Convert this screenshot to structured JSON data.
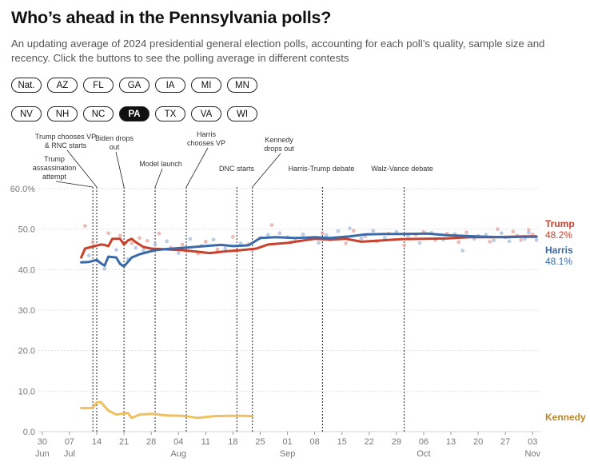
{
  "header": {
    "title": "Who’s ahead in the Pennsylvania polls?",
    "subtitle": "An updating average of 2024 presidential general election polls, accounting for each poll’s quality, sample size and recency. Click the buttons to see the polling average in different contests"
  },
  "contests": {
    "row1": [
      "Nat.",
      "AZ",
      "FL",
      "GA",
      "IA",
      "MI",
      "MN"
    ],
    "row2": [
      "NV",
      "NH",
      "NC",
      "PA",
      "TX",
      "VA",
      "WI"
    ],
    "active": "PA"
  },
  "chart_data": {
    "type": "line",
    "xlabel": "",
    "ylabel": "",
    "ylim": [
      0,
      60
    ],
    "y_ticks": [
      "0.0",
      "10.0",
      "20.0",
      "30.0",
      "40.0",
      "50.0",
      "60.0%"
    ],
    "x_ticks": [
      {
        "date": "2024-06-30",
        "day": "30",
        "month": "Jun"
      },
      {
        "date": "2024-07-07",
        "day": "07",
        "month": "Jul"
      },
      {
        "date": "2024-07-14",
        "day": "14",
        "month": ""
      },
      {
        "date": "2024-07-21",
        "day": "21",
        "month": ""
      },
      {
        "date": "2024-07-28",
        "day": "28",
        "month": ""
      },
      {
        "date": "2024-08-04",
        "day": "04",
        "month": "Aug"
      },
      {
        "date": "2024-08-11",
        "day": "11",
        "month": ""
      },
      {
        "date": "2024-08-18",
        "day": "18",
        "month": ""
      },
      {
        "date": "2024-08-25",
        "day": "25",
        "month": ""
      },
      {
        "date": "2024-09-01",
        "day": "01",
        "month": "Sep"
      },
      {
        "date": "2024-09-08",
        "day": "08",
        "month": ""
      },
      {
        "date": "2024-09-15",
        "day": "15",
        "month": ""
      },
      {
        "date": "2024-09-22",
        "day": "22",
        "month": ""
      },
      {
        "date": "2024-09-29",
        "day": "29",
        "month": ""
      },
      {
        "date": "2024-10-06",
        "day": "06",
        "month": "Oct"
      },
      {
        "date": "2024-10-13",
        "day": "13",
        "month": ""
      },
      {
        "date": "2024-10-20",
        "day": "20",
        "month": ""
      },
      {
        "date": "2024-10-27",
        "day": "27",
        "month": ""
      },
      {
        "date": "2024-11-03",
        "day": "03",
        "month": "Nov"
      }
    ],
    "xlim": [
      "2024-06-29",
      "2024-11-05"
    ],
    "grid": "horizontal dotted",
    "series": [
      {
        "name": "Trump",
        "color": "#c8412d",
        "label_value": "48.2%",
        "points": [
          [
            "2024-07-10",
            43.0
          ],
          [
            "2024-07-11",
            45.2
          ],
          [
            "2024-07-13",
            45.7
          ],
          [
            "2024-07-15",
            46.2
          ],
          [
            "2024-07-16",
            46.1
          ],
          [
            "2024-07-17",
            45.8
          ],
          [
            "2024-07-18",
            47.6
          ],
          [
            "2024-07-20",
            47.6
          ],
          [
            "2024-07-21",
            46.2
          ],
          [
            "2024-07-22",
            47.2
          ],
          [
            "2024-07-23",
            47.6
          ],
          [
            "2024-07-24",
            46.8
          ],
          [
            "2024-07-26",
            45.6
          ],
          [
            "2024-07-28",
            45.2
          ],
          [
            "2024-08-01",
            45.0
          ],
          [
            "2024-08-05",
            44.8
          ],
          [
            "2024-08-09",
            44.4
          ],
          [
            "2024-08-12",
            44.1
          ],
          [
            "2024-08-16",
            44.5
          ],
          [
            "2024-08-20",
            44.8
          ],
          [
            "2024-08-24",
            45.2
          ],
          [
            "2024-08-27",
            46.2
          ],
          [
            "2024-09-01",
            46.6
          ],
          [
            "2024-09-05",
            47.2
          ],
          [
            "2024-09-08",
            47.6
          ],
          [
            "2024-09-12",
            47.4
          ],
          [
            "2024-09-16",
            47.6
          ],
          [
            "2024-09-20",
            46.9
          ],
          [
            "2024-09-25",
            47.2
          ],
          [
            "2024-09-30",
            47.5
          ],
          [
            "2024-10-06",
            47.6
          ],
          [
            "2024-10-12",
            47.7
          ],
          [
            "2024-10-18",
            48.0
          ],
          [
            "2024-10-24",
            48.0
          ],
          [
            "2024-10-28",
            48.1
          ],
          [
            "2024-11-01",
            48.2
          ],
          [
            "2024-11-04",
            48.2
          ]
        ]
      },
      {
        "name": "Harris",
        "color": "#3a6aa8",
        "label_value": "48.1%",
        "points": [
          [
            "2024-07-10",
            41.8
          ],
          [
            "2024-07-12",
            41.9
          ],
          [
            "2024-07-14",
            42.4
          ],
          [
            "2024-07-15",
            41.6
          ],
          [
            "2024-07-16",
            41.0
          ],
          [
            "2024-07-17",
            43.2
          ],
          [
            "2024-07-19",
            43.0
          ],
          [
            "2024-07-20",
            41.4
          ],
          [
            "2024-07-21",
            40.8
          ],
          [
            "2024-07-23",
            43.0
          ],
          [
            "2024-07-25",
            43.8
          ],
          [
            "2024-07-27",
            44.3
          ],
          [
            "2024-07-29",
            44.8
          ],
          [
            "2024-08-01",
            45.1
          ],
          [
            "2024-08-04",
            45.3
          ],
          [
            "2024-08-08",
            45.6
          ],
          [
            "2024-08-12",
            45.9
          ],
          [
            "2024-08-15",
            46.1
          ],
          [
            "2024-08-18",
            45.8
          ],
          [
            "2024-08-22",
            46.0
          ],
          [
            "2024-08-25",
            47.8
          ],
          [
            "2024-08-29",
            48.0
          ],
          [
            "2024-09-03",
            47.8
          ],
          [
            "2024-09-08",
            48.0
          ],
          [
            "2024-09-12",
            47.8
          ],
          [
            "2024-09-17",
            48.2
          ],
          [
            "2024-09-21",
            48.7
          ],
          [
            "2024-09-26",
            48.8
          ],
          [
            "2024-10-01",
            48.8
          ],
          [
            "2024-10-07",
            48.9
          ],
          [
            "2024-10-12",
            48.5
          ],
          [
            "2024-10-17",
            48.3
          ],
          [
            "2024-10-22",
            48.1
          ],
          [
            "2024-10-27",
            48.0
          ],
          [
            "2024-10-31",
            48.1
          ],
          [
            "2024-11-04",
            48.1
          ]
        ]
      },
      {
        "name": "Kennedy",
        "color": "#f0c060",
        "label_value": "",
        "points": [
          [
            "2024-07-10",
            5.8
          ],
          [
            "2024-07-12",
            5.8
          ],
          [
            "2024-07-13",
            5.9
          ],
          [
            "2024-07-14",
            7.2
          ],
          [
            "2024-07-15",
            7.3
          ],
          [
            "2024-07-17",
            5.2
          ],
          [
            "2024-07-19",
            4.2
          ],
          [
            "2024-07-21",
            4.5
          ],
          [
            "2024-07-22",
            4.6
          ],
          [
            "2024-07-23",
            3.4
          ],
          [
            "2024-07-25",
            4.2
          ],
          [
            "2024-07-28",
            4.4
          ],
          [
            "2024-08-01",
            4.0
          ],
          [
            "2024-08-05",
            3.9
          ],
          [
            "2024-08-09",
            3.4
          ],
          [
            "2024-08-13",
            3.8
          ],
          [
            "2024-08-17",
            3.9
          ],
          [
            "2024-08-21",
            3.9
          ],
          [
            "2024-08-23",
            3.8
          ]
        ]
      }
    ],
    "annotations": [
      {
        "date": "2024-07-13",
        "lines": [
          "Trump",
          "assassination",
          "attempt"
        ]
      },
      {
        "date": "2024-07-14",
        "lines": [
          "Trump chooses VP",
          "& RNC starts"
        ]
      },
      {
        "date": "2024-07-21",
        "lines": [
          "Biden drops",
          "out"
        ]
      },
      {
        "date": "2024-07-29",
        "lines": [
          "Model launch"
        ]
      },
      {
        "date": "2024-08-06",
        "lines": [
          "Harris",
          "chooses VP"
        ]
      },
      {
        "date": "2024-08-19",
        "lines": [
          "DNC starts"
        ]
      },
      {
        "date": "2024-08-23",
        "lines": [
          "Kennedy",
          "drops out"
        ]
      },
      {
        "date": "2024-09-10",
        "lines": [
          "Harris-Trump debate"
        ]
      },
      {
        "date": "2024-10-01",
        "lines": [
          "Walz-Vance debate"
        ]
      }
    ],
    "polls": {
      "Trump": [
        [
          "2024-07-11",
          50.8
        ],
        [
          "2024-07-13",
          46.8
        ],
        [
          "2024-07-17",
          49.0
        ],
        [
          "2024-07-20",
          48.4
        ],
        [
          "2024-07-23",
          46.5
        ],
        [
          "2024-07-25",
          47.8
        ],
        [
          "2024-07-27",
          47.1
        ],
        [
          "2024-07-30",
          48.9
        ],
        [
          "2024-08-02",
          45.4
        ],
        [
          "2024-08-05",
          46.2
        ],
        [
          "2024-08-09",
          44.0
        ],
        [
          "2024-08-11",
          46.9
        ],
        [
          "2024-08-14",
          45.0
        ],
        [
          "2024-08-18",
          48.1
        ],
        [
          "2024-08-22",
          46.3
        ],
        [
          "2024-08-25",
          47.8
        ],
        [
          "2024-08-28",
          51.0
        ],
        [
          "2024-09-01",
          48.0
        ],
        [
          "2024-09-03",
          47.1
        ],
        [
          "2024-09-06",
          47.7
        ],
        [
          "2024-09-10",
          49.0
        ],
        [
          "2024-09-12",
          47.4
        ],
        [
          "2024-09-16",
          46.5
        ],
        [
          "2024-09-18",
          49.6
        ],
        [
          "2024-09-21",
          48.2
        ],
        [
          "2024-09-24",
          47.0
        ],
        [
          "2024-09-27",
          48.9
        ],
        [
          "2024-10-01",
          46.0
        ],
        [
          "2024-10-04",
          48.6
        ],
        [
          "2024-10-06",
          49.3
        ],
        [
          "2024-10-09",
          47.3
        ],
        [
          "2024-10-12",
          48.9
        ],
        [
          "2024-10-15",
          46.8
        ],
        [
          "2024-10-17",
          49.2
        ],
        [
          "2024-10-20",
          48.3
        ],
        [
          "2024-10-23",
          46.9
        ],
        [
          "2024-10-25",
          50.0
        ],
        [
          "2024-10-27",
          48.0
        ],
        [
          "2024-10-29",
          49.4
        ],
        [
          "2024-10-31",
          47.3
        ],
        [
          "2024-11-02",
          49.8
        ],
        [
          "2024-11-03",
          48.7
        ]
      ],
      "Harris": [
        [
          "2024-07-12",
          43.5
        ],
        [
          "2024-07-16",
          40.2
        ],
        [
          "2024-07-19",
          44.9
        ],
        [
          "2024-07-22",
          42.6
        ],
        [
          "2024-07-24",
          45.4
        ],
        [
          "2024-07-26",
          44.8
        ],
        [
          "2024-07-29",
          46.2
        ],
        [
          "2024-08-01",
          47.0
        ],
        [
          "2024-08-04",
          44.1
        ],
        [
          "2024-08-07",
          47.6
        ],
        [
          "2024-08-10",
          45.9
        ],
        [
          "2024-08-13",
          47.4
        ],
        [
          "2024-08-16",
          45.2
        ],
        [
          "2024-08-20",
          46.5
        ],
        [
          "2024-08-23",
          44.9
        ],
        [
          "2024-08-27",
          48.6
        ],
        [
          "2024-08-30",
          49.0
        ],
        [
          "2024-09-02",
          46.7
        ],
        [
          "2024-09-05",
          48.7
        ],
        [
          "2024-09-09",
          46.6
        ],
        [
          "2024-09-11",
          48.5
        ],
        [
          "2024-09-14",
          49.5
        ],
        [
          "2024-09-17",
          50.2
        ],
        [
          "2024-09-20",
          47.7
        ],
        [
          "2024-09-23",
          49.6
        ],
        [
          "2024-09-26",
          47.9
        ],
        [
          "2024-09-29",
          49.3
        ],
        [
          "2024-10-02",
          48.4
        ],
        [
          "2024-10-05",
          46.6
        ],
        [
          "2024-10-08",
          49.1
        ],
        [
          "2024-10-11",
          47.4
        ],
        [
          "2024-10-14",
          48.8
        ],
        [
          "2024-10-16",
          44.7
        ],
        [
          "2024-10-19",
          47.6
        ],
        [
          "2024-10-22",
          48.6
        ],
        [
          "2024-10-24",
          47.2
        ],
        [
          "2024-10-26",
          49.0
        ],
        [
          "2024-10-28",
          47.0
        ],
        [
          "2024-10-30",
          48.4
        ],
        [
          "2024-11-01",
          47.6
        ],
        [
          "2024-11-02",
          49.1
        ],
        [
          "2024-11-04",
          47.3
        ]
      ]
    }
  }
}
